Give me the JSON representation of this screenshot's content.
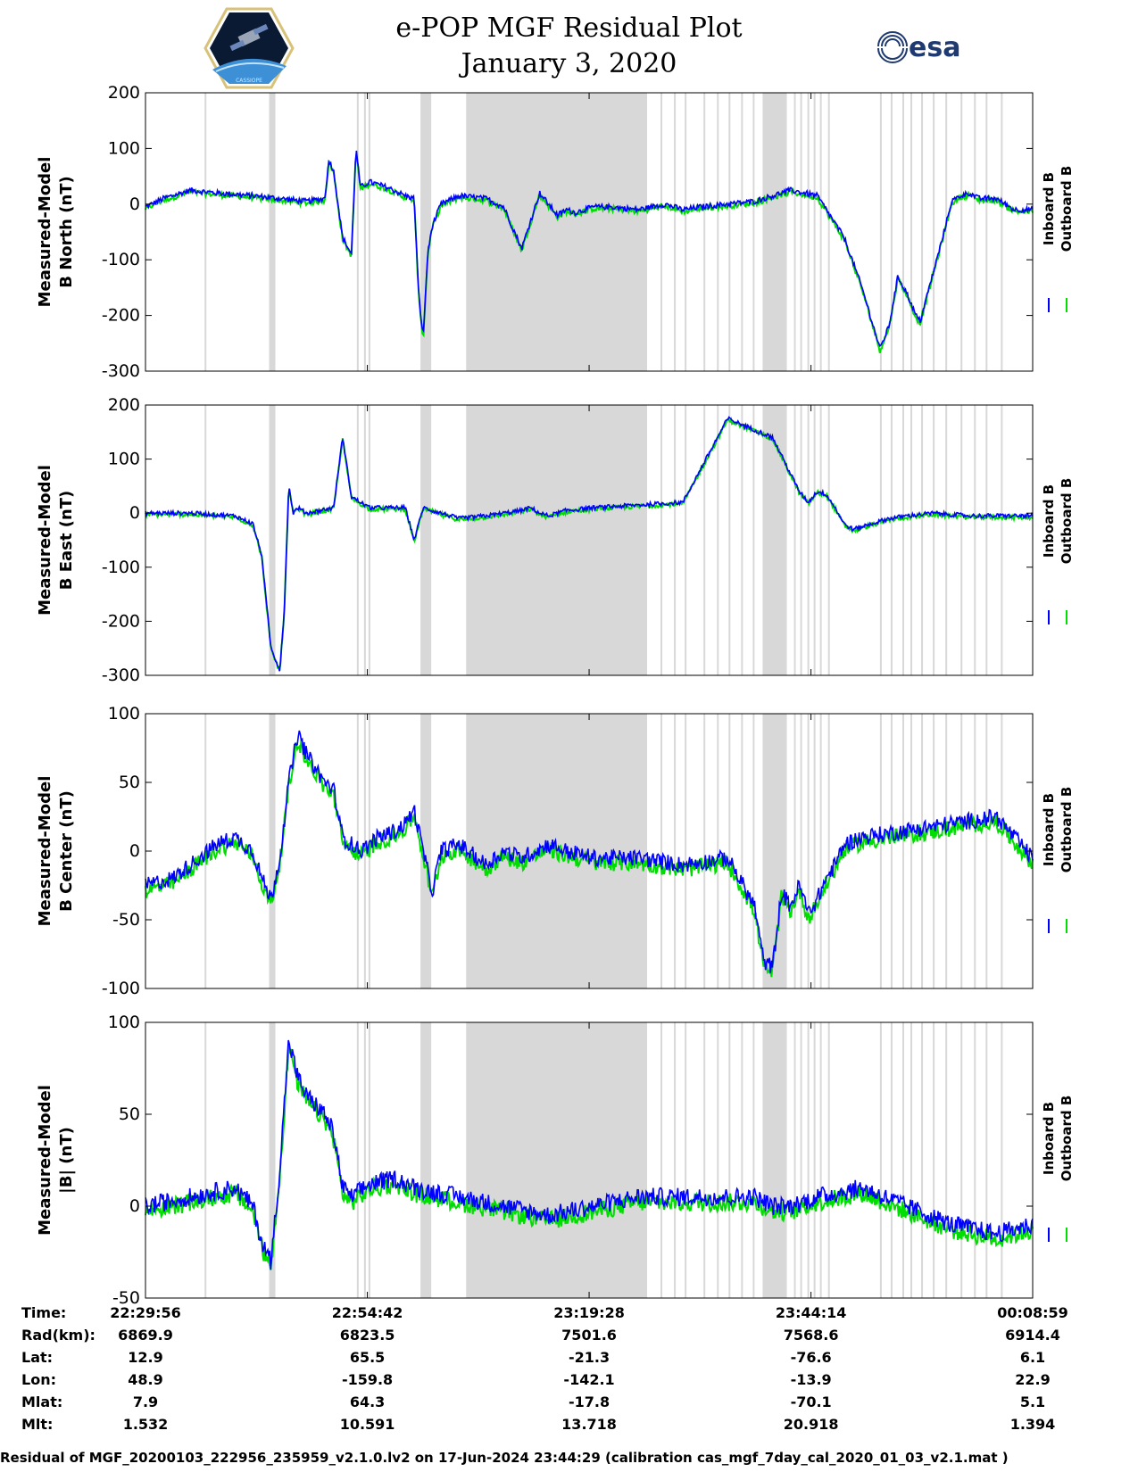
{
  "title": {
    "line1": "e-POP MGF Residual Plot",
    "line2": "January 3, 2020"
  },
  "logos": {
    "left": "cassiope-mission-logo",
    "right": "esa",
    "left_text": "CASSIOPE"
  },
  "colors": {
    "inboard": "#0000ff",
    "outboard": "#00dd00",
    "shade": "#d8d8d8",
    "axis": "#000000"
  },
  "chart_data": [
    {
      "type": "line",
      "ylabel": [
        "Measured-Model",
        "B North (nT)"
      ],
      "ylim": [
        -300,
        200
      ],
      "yticks": [
        -300,
        -200,
        -100,
        0,
        100,
        200
      ],
      "ytick_labels": [
        "-300",
        "-200",
        "-100",
        "0",
        "100",
        "200"
      ],
      "legend": [
        "Inboard B",
        "Outboard B"
      ],
      "legend_position": "right",
      "x_range_minutes": [
        0,
        99.05
      ],
      "series": [
        {
          "name": "Inboard B",
          "color": "#0000ff",
          "x": [
            0,
            2,
            5,
            8,
            12,
            15,
            18,
            20,
            20.5,
            21,
            22,
            23,
            23.5,
            24,
            25,
            27,
            29,
            30,
            30.5,
            31,
            31.5,
            32,
            33,
            35,
            38,
            40,
            42,
            44,
            45,
            45.5,
            46,
            47,
            48,
            50,
            52,
            55,
            58,
            60,
            62,
            65,
            68,
            70,
            72,
            75,
            78,
            80,
            82,
            83,
            84,
            85,
            86,
            86.5,
            87,
            88,
            89,
            90,
            91,
            92,
            93,
            95,
            97,
            99
          ],
          "y": [
            -5,
            10,
            25,
            20,
            15,
            10,
            5,
            10,
            80,
            60,
            -60,
            -90,
            100,
            30,
            40,
            30,
            15,
            10,
            -160,
            -240,
            -90,
            -40,
            0,
            15,
            10,
            -5,
            -80,
            20,
            0,
            -10,
            -20,
            -10,
            -15,
            -5,
            -5,
            -10,
            0,
            -10,
            -5,
            0,
            5,
            15,
            25,
            15,
            -60,
            -150,
            -260,
            -220,
            -130,
            -160,
            -200,
            -210,
            -180,
            -120,
            -60,
            5,
            15,
            20,
            10,
            10,
            -10,
            -10
          ],
          "amplitude": 5
        }
      ]
    },
    {
      "type": "line",
      "ylabel": [
        "Measured-Model",
        "B East (nT)"
      ],
      "ylim": [
        -300,
        200
      ],
      "yticks": [
        -300,
        -200,
        -100,
        0,
        100,
        200
      ],
      "ytick_labels": [
        "-300",
        "-200",
        "-100",
        "0",
        "100",
        "200"
      ],
      "legend": [
        "Inboard B",
        "Outboard B"
      ],
      "legend_position": "right",
      "x_range_minutes": [
        0,
        99.05
      ],
      "series": [
        {
          "name": "Inboard B",
          "color": "#0000ff",
          "x": [
            0,
            5,
            10,
            12,
            13,
            14,
            15,
            15.5,
            16,
            16.5,
            17,
            18,
            21,
            22,
            23,
            25,
            29,
            30,
            31,
            33,
            35,
            38,
            40,
            42,
            43,
            44,
            45,
            47,
            50,
            55,
            60,
            65,
            70,
            73,
            74,
            75,
            76,
            77,
            78,
            79,
            80,
            81,
            82,
            83,
            85,
            88,
            92,
            96,
            99
          ],
          "y": [
            0,
            0,
            -5,
            -20,
            -80,
            -250,
            -290,
            -180,
            50,
            0,
            10,
            0,
            10,
            140,
            30,
            10,
            10,
            -50,
            10,
            0,
            -10,
            -5,
            0,
            5,
            10,
            0,
            -5,
            5,
            10,
            15,
            20,
            175,
            140,
            40,
            20,
            40,
            35,
            10,
            -20,
            -30,
            -25,
            -20,
            -15,
            -10,
            -5,
            0,
            -5,
            -5,
            -5
          ],
          "amplitude": 4
        }
      ]
    },
    {
      "type": "line",
      "ylabel": [
        "Measured-Model",
        "B Center (nT)"
      ],
      "ylim": [
        -100,
        100
      ],
      "yticks": [
        -100,
        -50,
        0,
        50,
        100
      ],
      "ytick_labels": [
        "-100",
        "-50",
        "0",
        "50",
        "100"
      ],
      "legend": [
        "Inboard B",
        "Outboard B"
      ],
      "legend_position": "right",
      "x_range_minutes": [
        0,
        99.05
      ],
      "series": [
        {
          "name": "Inboard B",
          "color": "#0000ff",
          "x": [
            0,
            3,
            5,
            8,
            10,
            12,
            13,
            14,
            15,
            16,
            17,
            18,
            20,
            21,
            22,
            24,
            26,
            28,
            29,
            30,
            31,
            32,
            33,
            35,
            38,
            40,
            42,
            45,
            47,
            50,
            55,
            60,
            65,
            68,
            69,
            70,
            71,
            72,
            73,
            74,
            75,
            76,
            77,
            78,
            80,
            85,
            90,
            95,
            99
          ],
          "y": [
            -25,
            -20,
            -10,
            5,
            10,
            0,
            -20,
            -35,
            -5,
            50,
            85,
            70,
            50,
            45,
            10,
            0,
            10,
            15,
            20,
            30,
            0,
            -30,
            0,
            5,
            -10,
            0,
            -5,
            5,
            0,
            -5,
            -5,
            -10,
            -5,
            -40,
            -80,
            -85,
            -30,
            -40,
            -25,
            -45,
            -35,
            -20,
            -10,
            5,
            10,
            15,
            20,
            25,
            -5
          ],
          "amplitude": 6
        }
      ]
    },
    {
      "type": "line",
      "ylabel": [
        "Measured-Model",
        "|B| (nT)"
      ],
      "ylim": [
        -50,
        100
      ],
      "yticks": [
        -50,
        0,
        50,
        100
      ],
      "ytick_labels": [
        "-50",
        "0",
        "50",
        "100"
      ],
      "legend": [
        "Inboard B",
        "Outboard B"
      ],
      "legend_position": "right",
      "x_range_minutes": [
        0,
        99.05
      ],
      "series": [
        {
          "name": "Inboard B",
          "color": "#0000ff",
          "x": [
            0,
            5,
            10,
            12,
            13,
            14,
            15,
            16,
            17,
            18,
            20,
            21,
            22,
            23,
            25,
            28,
            30,
            35,
            40,
            45,
            50,
            55,
            60,
            65,
            68,
            70,
            72,
            75,
            80,
            85,
            90,
            95,
            99
          ],
          "y": [
            0,
            5,
            10,
            0,
            -20,
            -30,
            20,
            90,
            70,
            60,
            50,
            40,
            10,
            5,
            12,
            15,
            10,
            5,
            0,
            -5,
            0,
            5,
            5,
            5,
            5,
            0,
            0,
            5,
            10,
            0,
            -10,
            -15,
            -10
          ],
          "amplitude": 5
        }
      ]
    }
  ],
  "shaded_intervals_minutes": [
    [
      13.8,
      14.5
    ],
    [
      30.7,
      31.9
    ],
    [
      35.8,
      56.0
    ],
    [
      68.9,
      71.6
    ]
  ],
  "shaded_lines_minutes": [
    6.6,
    23.6,
    24.4,
    24.9,
    57.5,
    59.0,
    60.2,
    62.3,
    63.8,
    65.1,
    66.5,
    67.8,
    72.4,
    73.1,
    73.9,
    74.6,
    75.3,
    76.2,
    82.0,
    83.2,
    84.5,
    85.4,
    86.6,
    87.9,
    89.3,
    91.0,
    92.5,
    93.8,
    95.5
  ],
  "x_ticks_minutes": [
    0,
    24.77,
    49.53,
    74.3,
    99.05
  ],
  "ephemeris": {
    "labels": [
      "Time:",
      "Rad(km):",
      "Lat:",
      "Lon:",
      "Mlat:",
      "Mlt:"
    ],
    "columns": [
      [
        "22:29:56",
        "6869.9",
        "12.9",
        "48.9",
        "7.9",
        "1.532"
      ],
      [
        "22:54:42",
        "6823.5",
        "65.5",
        "-159.8",
        "64.3",
        "10.591"
      ],
      [
        "23:19:28",
        "7501.6",
        "-21.3",
        "-142.1",
        "-17.8",
        "13.718"
      ],
      [
        "23:44:14",
        "7568.6",
        "-76.6",
        "-13.9",
        "-70.1",
        "20.918"
      ],
      [
        "00:08:59",
        "6914.4",
        "6.1",
        "22.9",
        "5.1",
        "1.394"
      ]
    ]
  },
  "footer": "Residual of MGF_20200103_222956_235959_v2.1.0.lv2 on 17-Jun-2024 23:44:29 (calibration cas_mgf_7day_cal_2020_01_03_v2.1.mat )"
}
